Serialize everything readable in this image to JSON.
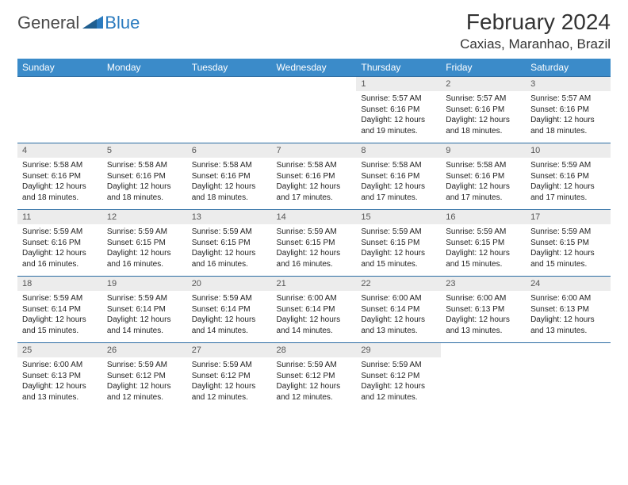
{
  "logo": {
    "left": "General",
    "right": "Blue"
  },
  "title": "February 2024",
  "location": "Caxias, Maranhao, Brazil",
  "colors": {
    "header_bg": "#3b8bc9",
    "header_text": "#ffffff",
    "daynum_bg": "#ececec",
    "rule": "#2b6ca3",
    "logo_gray": "#4a4a4a",
    "logo_blue": "#2b7bbf"
  },
  "weekdays": [
    "Sunday",
    "Monday",
    "Tuesday",
    "Wednesday",
    "Thursday",
    "Friday",
    "Saturday"
  ],
  "weeks": [
    [
      null,
      null,
      null,
      null,
      {
        "n": "1",
        "sr": "5:57 AM",
        "ss": "6:16 PM",
        "dl": "12 hours and 19 minutes."
      },
      {
        "n": "2",
        "sr": "5:57 AM",
        "ss": "6:16 PM",
        "dl": "12 hours and 18 minutes."
      },
      {
        "n": "3",
        "sr": "5:57 AM",
        "ss": "6:16 PM",
        "dl": "12 hours and 18 minutes."
      }
    ],
    [
      {
        "n": "4",
        "sr": "5:58 AM",
        "ss": "6:16 PM",
        "dl": "12 hours and 18 minutes."
      },
      {
        "n": "5",
        "sr": "5:58 AM",
        "ss": "6:16 PM",
        "dl": "12 hours and 18 minutes."
      },
      {
        "n": "6",
        "sr": "5:58 AM",
        "ss": "6:16 PM",
        "dl": "12 hours and 18 minutes."
      },
      {
        "n": "7",
        "sr": "5:58 AM",
        "ss": "6:16 PM",
        "dl": "12 hours and 17 minutes."
      },
      {
        "n": "8",
        "sr": "5:58 AM",
        "ss": "6:16 PM",
        "dl": "12 hours and 17 minutes."
      },
      {
        "n": "9",
        "sr": "5:58 AM",
        "ss": "6:16 PM",
        "dl": "12 hours and 17 minutes."
      },
      {
        "n": "10",
        "sr": "5:59 AM",
        "ss": "6:16 PM",
        "dl": "12 hours and 17 minutes."
      }
    ],
    [
      {
        "n": "11",
        "sr": "5:59 AM",
        "ss": "6:16 PM",
        "dl": "12 hours and 16 minutes."
      },
      {
        "n": "12",
        "sr": "5:59 AM",
        "ss": "6:15 PM",
        "dl": "12 hours and 16 minutes."
      },
      {
        "n": "13",
        "sr": "5:59 AM",
        "ss": "6:15 PM",
        "dl": "12 hours and 16 minutes."
      },
      {
        "n": "14",
        "sr": "5:59 AM",
        "ss": "6:15 PM",
        "dl": "12 hours and 16 minutes."
      },
      {
        "n": "15",
        "sr": "5:59 AM",
        "ss": "6:15 PM",
        "dl": "12 hours and 15 minutes."
      },
      {
        "n": "16",
        "sr": "5:59 AM",
        "ss": "6:15 PM",
        "dl": "12 hours and 15 minutes."
      },
      {
        "n": "17",
        "sr": "5:59 AM",
        "ss": "6:15 PM",
        "dl": "12 hours and 15 minutes."
      }
    ],
    [
      {
        "n": "18",
        "sr": "5:59 AM",
        "ss": "6:14 PM",
        "dl": "12 hours and 15 minutes."
      },
      {
        "n": "19",
        "sr": "5:59 AM",
        "ss": "6:14 PM",
        "dl": "12 hours and 14 minutes."
      },
      {
        "n": "20",
        "sr": "5:59 AM",
        "ss": "6:14 PM",
        "dl": "12 hours and 14 minutes."
      },
      {
        "n": "21",
        "sr": "6:00 AM",
        "ss": "6:14 PM",
        "dl": "12 hours and 14 minutes."
      },
      {
        "n": "22",
        "sr": "6:00 AM",
        "ss": "6:14 PM",
        "dl": "12 hours and 13 minutes."
      },
      {
        "n": "23",
        "sr": "6:00 AM",
        "ss": "6:13 PM",
        "dl": "12 hours and 13 minutes."
      },
      {
        "n": "24",
        "sr": "6:00 AM",
        "ss": "6:13 PM",
        "dl": "12 hours and 13 minutes."
      }
    ],
    [
      {
        "n": "25",
        "sr": "6:00 AM",
        "ss": "6:13 PM",
        "dl": "12 hours and 13 minutes."
      },
      {
        "n": "26",
        "sr": "5:59 AM",
        "ss": "6:12 PM",
        "dl": "12 hours and 12 minutes."
      },
      {
        "n": "27",
        "sr": "5:59 AM",
        "ss": "6:12 PM",
        "dl": "12 hours and 12 minutes."
      },
      {
        "n": "28",
        "sr": "5:59 AM",
        "ss": "6:12 PM",
        "dl": "12 hours and 12 minutes."
      },
      {
        "n": "29",
        "sr": "5:59 AM",
        "ss": "6:12 PM",
        "dl": "12 hours and 12 minutes."
      },
      null,
      null
    ]
  ],
  "labels": {
    "sunrise": "Sunrise:",
    "sunset": "Sunset:",
    "daylight": "Daylight:"
  }
}
